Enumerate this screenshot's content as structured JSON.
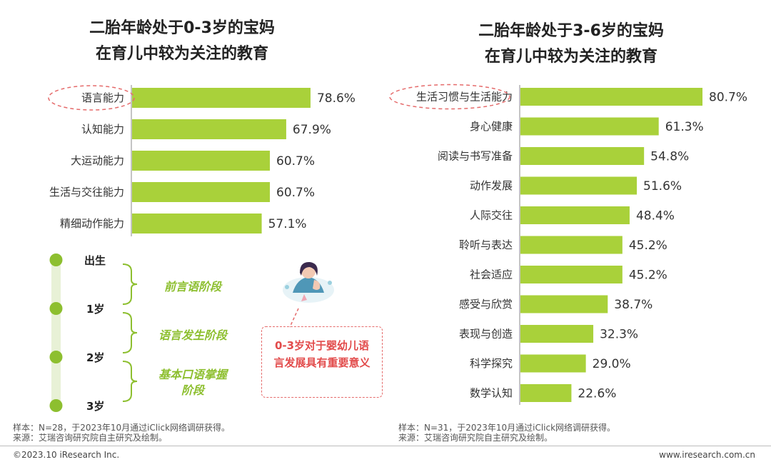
{
  "chart_data": [
    {
      "type": "bar",
      "orientation": "horizontal",
      "title": "二胎年龄处于0-3岁的宝妈在育儿中较为关注的教育",
      "title_lines": [
        "二胎年龄处于0-3岁的宝妈",
        "在育儿中较为关注的教育"
      ],
      "categories": [
        "语言能力",
        "认知能力",
        "大运动能力",
        "生活与交往能力",
        "精细动作能力"
      ],
      "values": [
        78.6,
        67.9,
        60.7,
        60.7,
        57.1
      ],
      "value_labels": [
        "78.6%",
        "67.9%",
        "60.7%",
        "60.7%",
        "57.1%"
      ],
      "highlighted_category": "语言能力",
      "unit": "%",
      "xlim": [
        0,
        100
      ],
      "bar_color": "#a9d13a",
      "grid": false,
      "legend": "none"
    },
    {
      "type": "bar",
      "orientation": "horizontal",
      "title": "二胎年龄处于3-6岁的宝妈在育儿中较为关注的教育",
      "title_lines": [
        "二胎年龄处于3-6岁的宝妈",
        "在育儿中较为关注的教育"
      ],
      "categories": [
        "生活习惯与生活能力",
        "身心健康",
        "阅读与书写准备",
        "动作发展",
        "人际交往",
        "聆听与表达",
        "社会适应",
        "感受与欣赏",
        "表现与创造",
        "科学探究",
        "数学认知"
      ],
      "values": [
        80.7,
        61.3,
        54.8,
        51.6,
        48.4,
        45.2,
        45.2,
        38.7,
        32.3,
        29.0,
        22.6
      ],
      "value_labels": [
        "80.7%",
        "61.3%",
        "54.8%",
        "51.6%",
        "48.4%",
        "45.2%",
        "45.2%",
        "38.7%",
        "32.3%",
        "29.0%",
        "22.6%"
      ],
      "highlighted_category": "生活习惯与生活能力",
      "unit": "%",
      "xlim": [
        0,
        100
      ],
      "bar_color": "#a9d13a",
      "grid": false,
      "legend": "none"
    }
  ],
  "timeline": {
    "ages": [
      "出生",
      "1岁",
      "2岁",
      "3岁"
    ],
    "stages": [
      "前言语阶段",
      "语言发生阶段",
      "基本口语掌握阶段"
    ],
    "stage3_lines": [
      "基本口语掌握",
      "阶段"
    ],
    "callout": "0-3岁对于婴幼儿语言发展具有重要意义",
    "callout_lines": [
      "0-3岁对于婴幼儿语",
      "言发展具有重要意义"
    ],
    "illustration_icon": "mother-with-baby-illustration",
    "dot_color": "#8dbf2f",
    "line_color": "#e8f1d6"
  },
  "notes": {
    "left_sample": "样本：N=28，于2023年10月通过iClick网络调研获得。",
    "left_source": "来源：艾瑞咨询研究院自主研究及绘制。",
    "right_sample": "样本：N=31，于2023年10月通过iClick网络调研获得。",
    "right_source": "来源：艾瑞咨询研究院自主研究及绘制。"
  },
  "footer": {
    "copyright": "©2023.10 iResearch Inc.",
    "website": "www.iresearch.com.cn"
  },
  "colors": {
    "bar": "#a9d13a",
    "highlight_ellipse": "#e56b6b",
    "stage_text": "#8dbf2f",
    "callout_text": "#e24b4b"
  }
}
